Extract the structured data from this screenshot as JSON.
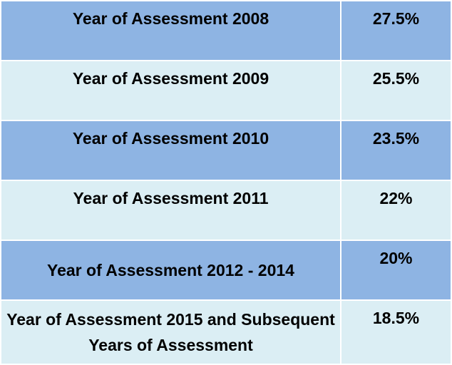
{
  "table": {
    "rows": [
      [
        "Year of Assessment 2008",
        "27.5%"
      ],
      [
        "Year of Assessment 2009",
        "25.5%"
      ],
      [
        "Year of Assessment 2010",
        "23.5%"
      ],
      [
        "Year of Assessment 2011",
        "22%"
      ],
      [
        "Year of Assessment 2012 - 2014",
        "20%"
      ],
      [
        "Year of Assessment 2015 and Subsequent Years of Assessment",
        "18.5%"
      ]
    ]
  }
}
